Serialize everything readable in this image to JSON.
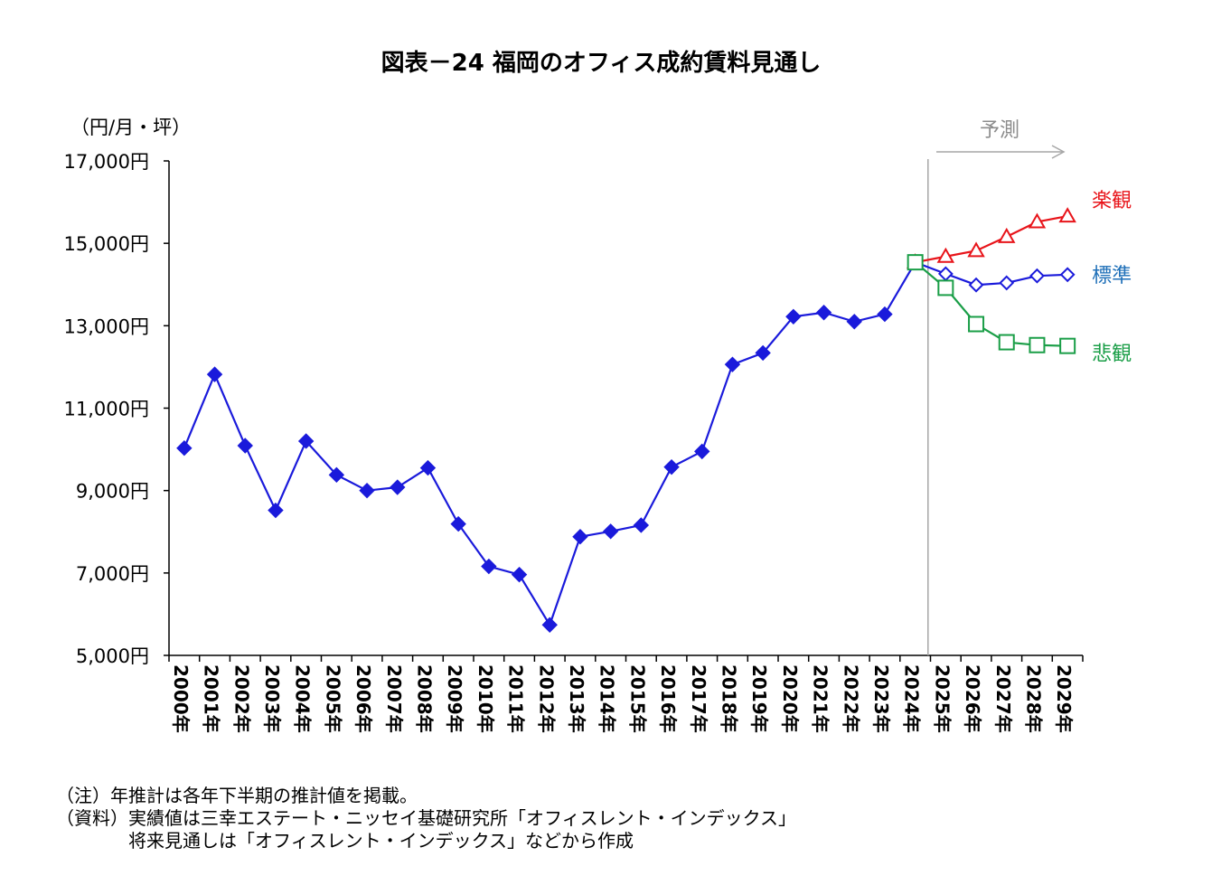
{
  "title": "図表－24 福岡のオフィス成約賃料見通し",
  "unit_label": "（円/月・坪）",
  "forecast_label": "予測",
  "notes": [
    "（注）年推計は各年下半期の推計値を掲載。",
    "（資料）実績値は三幸エステート・ニッセイ基礎研究所「オフィスレント・インデックス」",
    "　　　　将来見通しは「オフィスレント・インデックス」などから作成"
  ],
  "chart_data": {
    "type": "line",
    "title": "図表－24 福岡のオフィス成約賃料見通し",
    "ylabel": "（円/月・坪）",
    "ylim": [
      5000,
      17000
    ],
    "yticks": [
      5000,
      7000,
      9000,
      11000,
      13000,
      15000,
      17000
    ],
    "ytick_labels": [
      "5,000円",
      "7,000円",
      "9,000円",
      "11,000円",
      "13,000円",
      "15,000円",
      "17,000円"
    ],
    "categories": [
      "2000年",
      "2001年",
      "2002年",
      "2003年",
      "2004年",
      "2005年",
      "2006年",
      "2007年",
      "2008年",
      "2009年",
      "2010年",
      "2011年",
      "2012年",
      "2013年",
      "2014年",
      "2015年",
      "2016年",
      "2017年",
      "2018年",
      "2019年",
      "2020年",
      "2021年",
      "2022年",
      "2023年",
      "2024年",
      "2025年",
      "2026年",
      "2027年",
      "2028年",
      "2029年"
    ],
    "grid": false,
    "forecast_start": "2024年",
    "series": [
      {
        "name": "",
        "role": "actual",
        "color": "#1a1adb",
        "marker": "filled-diamond",
        "values": [
          10030,
          11820,
          10090,
          8520,
          10200,
          9380,
          9000,
          9080,
          9550,
          8190,
          7160,
          6960,
          5740,
          7880,
          8010,
          8160,
          9570,
          9950,
          12060,
          12340,
          13220,
          13320,
          13100,
          13280,
          14540,
          null,
          null,
          null,
          null,
          null
        ]
      },
      {
        "name": "楽観",
        "role": "optimistic",
        "color": "#e8141a",
        "marker": "open-triangle",
        "values": [
          null,
          null,
          null,
          null,
          null,
          null,
          null,
          null,
          null,
          null,
          null,
          null,
          null,
          null,
          null,
          null,
          null,
          null,
          null,
          null,
          null,
          null,
          null,
          null,
          14540,
          14680,
          14820,
          15160,
          15520,
          15660
        ]
      },
      {
        "name": "標準",
        "role": "standard",
        "color": "#1a1adb",
        "marker": "open-diamond",
        "values": [
          null,
          null,
          null,
          null,
          null,
          null,
          null,
          null,
          null,
          null,
          null,
          null,
          null,
          null,
          null,
          null,
          null,
          null,
          null,
          null,
          null,
          null,
          null,
          null,
          14540,
          14260,
          13990,
          14040,
          14210,
          14240
        ]
      },
      {
        "name": "悲観",
        "role": "pessimistic",
        "color": "#1a9e47",
        "marker": "open-square",
        "values": [
          null,
          null,
          null,
          null,
          null,
          null,
          null,
          null,
          null,
          null,
          null,
          null,
          null,
          null,
          null,
          null,
          null,
          null,
          null,
          null,
          null,
          null,
          null,
          null,
          14540,
          13920,
          13040,
          12600,
          12530,
          12510
        ]
      }
    ],
    "label_colors": {
      "楽観": "#e8141a",
      "標準": "#1e6fb8",
      "悲観": "#1a9e47"
    }
  }
}
